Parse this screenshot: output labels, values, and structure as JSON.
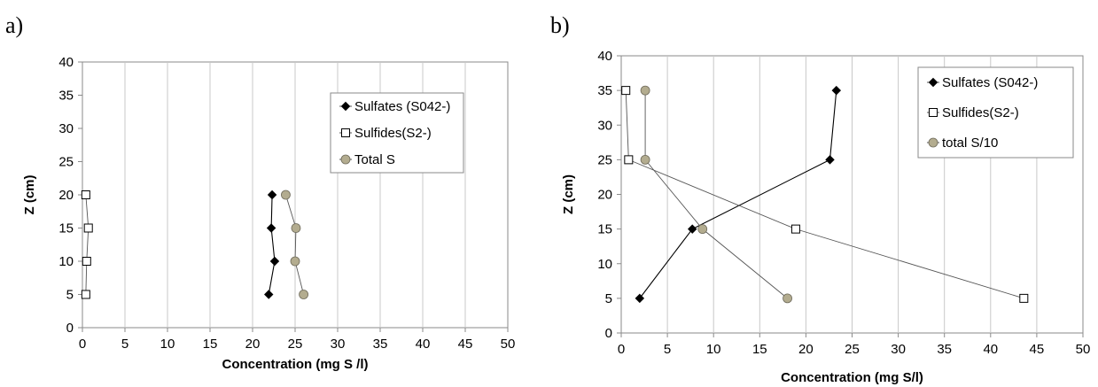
{
  "panel_labels": [
    "a)",
    "b)"
  ],
  "chart_data": [
    {
      "type": "scatter",
      "panel": "a)",
      "xlabel": "Concentration (mg S /l)",
      "ylabel": "Z (cm)",
      "xlim": [
        0,
        50
      ],
      "ylim": [
        0,
        40
      ],
      "x_ticks": [
        "0",
        "5",
        "10",
        "15",
        "20",
        "25",
        "30",
        "35",
        "40",
        "45",
        "50"
      ],
      "y_ticks": [
        "0",
        "5",
        "10",
        "15",
        "20",
        "25",
        "30",
        "35",
        "40"
      ],
      "grid": "vertical",
      "legend": "right",
      "series": [
        {
          "name": "Sulfates (S042-)",
          "marker": "diamond",
          "color": "#000000",
          "points": [
            [
              21.9,
              5
            ],
            [
              22.6,
              10
            ],
            [
              22.2,
              15
            ],
            [
              22.3,
              20
            ]
          ]
        },
        {
          "name": "Sulfides(S2-)",
          "marker": "square-open",
          "color": "#000000",
          "points": [
            [
              0.4,
              5
            ],
            [
              0.5,
              10
            ],
            [
              0.7,
              15
            ],
            [
              0.4,
              20
            ]
          ]
        },
        {
          "name": "Total S",
          "marker": "circle",
          "color": "#b3ac8f",
          "points": [
            [
              26.0,
              5
            ],
            [
              25.0,
              10
            ],
            [
              25.1,
              15
            ],
            [
              23.9,
              20
            ]
          ]
        }
      ]
    },
    {
      "type": "scatter",
      "panel": "b)",
      "xlabel": "Concentration (mg S/l)",
      "ylabel": "Z (cm)",
      "xlim": [
        0,
        50
      ],
      "ylim": [
        0,
        40
      ],
      "x_ticks": [
        "0",
        "5",
        "10",
        "15",
        "20",
        "25",
        "30",
        "35",
        "40",
        "45",
        "50"
      ],
      "y_ticks": [
        "0",
        "5",
        "10",
        "15",
        "20",
        "25",
        "30",
        "35",
        "40"
      ],
      "grid": "vertical",
      "legend": "top-right",
      "series": [
        {
          "name": "Sulfates (S042-)",
          "marker": "diamond",
          "color": "#000000",
          "points": [
            [
              2.0,
              5
            ],
            [
              7.7,
              15
            ],
            [
              22.6,
              25
            ],
            [
              23.3,
              35
            ]
          ]
        },
        {
          "name": "Sulfides(S2-)",
          "marker": "square-open",
          "color": "#000000",
          "points": [
            [
              43.6,
              5
            ],
            [
              18.9,
              15
            ],
            [
              0.8,
              25
            ],
            [
              0.5,
              35
            ]
          ]
        },
        {
          "name": "total S/10",
          "marker": "circle",
          "color": "#b3ac8f",
          "points": [
            [
              18.0,
              5
            ],
            [
              8.8,
              15
            ],
            [
              2.6,
              25
            ],
            [
              2.6,
              35
            ]
          ]
        }
      ]
    }
  ]
}
